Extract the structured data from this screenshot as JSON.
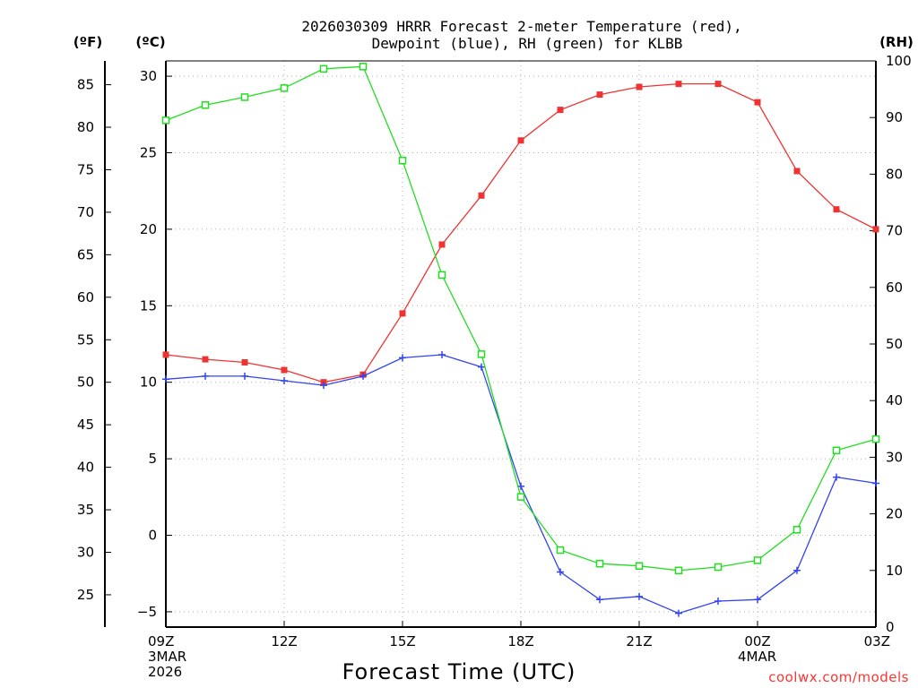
{
  "chart_data": {
    "type": "line",
    "title_line1": "2026030309 HRRR Forecast 2-meter Temperature (red),",
    "title_line2": "Dewpoint (blue), RH (green) for KLBB",
    "xlabel": "Forecast Time (UTC)",
    "credit": "coolwx.com/models",
    "axes": {
      "fahrenheit": {
        "unit": "(ºF)",
        "ticks": [
          25,
          30,
          35,
          40,
          45,
          50,
          55,
          60,
          65,
          70,
          75,
          80,
          85
        ]
      },
      "celsius": {
        "unit": "(ºC)",
        "range": [
          -6,
          31
        ],
        "ticks": [
          -5,
          0,
          5,
          10,
          15,
          20,
          25,
          30
        ]
      },
      "rh": {
        "unit": "(RH)",
        "range": [
          0,
          100
        ],
        "ticks": [
          0,
          10,
          20,
          30,
          40,
          50,
          60,
          70,
          80,
          90,
          100
        ]
      }
    },
    "x_hours": [
      0,
      1,
      2,
      3,
      4,
      5,
      6,
      7,
      8,
      9,
      10,
      11,
      12,
      13,
      14,
      15,
      16,
      17,
      18
    ],
    "x_ticks": [
      {
        "hour": 0,
        "lines": [
          "09Z",
          "3MAR",
          "2026"
        ]
      },
      {
        "hour": 3,
        "lines": [
          "12Z"
        ]
      },
      {
        "hour": 6,
        "lines": [
          "15Z"
        ]
      },
      {
        "hour": 9,
        "lines": [
          "18Z"
        ]
      },
      {
        "hour": 12,
        "lines": [
          "21Z"
        ]
      },
      {
        "hour": 15,
        "lines": [
          "00Z",
          "4MAR"
        ]
      },
      {
        "hour": 18,
        "lines": [
          "03Z"
        ]
      }
    ],
    "series": [
      {
        "name": "Temperature",
        "units": "C",
        "color": "#ee3333",
        "marker": "filled-square",
        "values": [
          11.8,
          11.5,
          11.3,
          10.8,
          10.0,
          10.5,
          14.5,
          19.0,
          22.2,
          25.8,
          27.8,
          28.8,
          29.3,
          29.5,
          29.5,
          28.3,
          23.8,
          21.3,
          20.0
        ]
      },
      {
        "name": "Dewpoint",
        "units": "C",
        "color": "#3344ee",
        "marker": "plus",
        "values": [
          10.2,
          10.4,
          10.4,
          10.1,
          9.8,
          10.4,
          11.6,
          11.8,
          11.0,
          3.2,
          -2.4,
          -4.2,
          -4.0,
          -5.1,
          -4.3,
          -4.2,
          -2.3,
          3.8,
          3.4
        ]
      },
      {
        "name": "RH",
        "units": "%",
        "color": "#22dd22",
        "marker": "open-square",
        "values": [
          89.5,
          92.2,
          93.6,
          95.2,
          98.6,
          99.0,
          82.4,
          62.2,
          48.2,
          23.0,
          13.6,
          11.2,
          10.8,
          10.0,
          10.6,
          11.8,
          17.2,
          31.2,
          33.2
        ]
      }
    ]
  }
}
